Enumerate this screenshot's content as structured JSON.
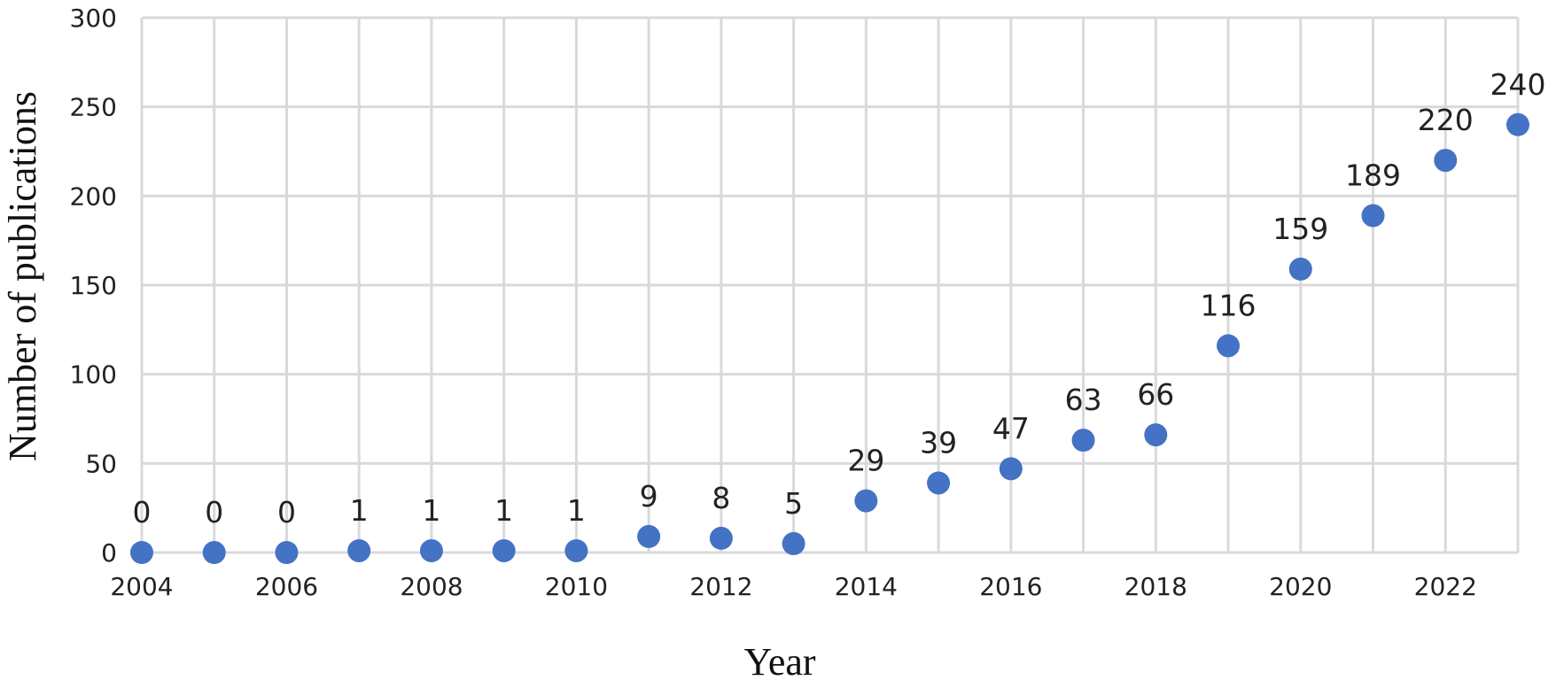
{
  "chart_data": {
    "type": "scatter",
    "title": "",
    "xlabel": "Year",
    "ylabel": "Number of publications",
    "xlim": [
      2004,
      2023
    ],
    "ylim": [
      0,
      300
    ],
    "x_ticks": [
      "2004",
      "2006",
      "2008",
      "2010",
      "2012",
      "2014",
      "2016",
      "2018",
      "2020",
      "2022"
    ],
    "y_ticks": [
      "0",
      "50",
      "100",
      "150",
      "200",
      "250",
      "300"
    ],
    "grid": true,
    "legend": "none",
    "series": [
      {
        "color": "#4472c4",
        "x": [
          2004,
          2005,
          2006,
          2007,
          2008,
          2009,
          2010,
          2011,
          2012,
          2013,
          2014,
          2015,
          2016,
          2017,
          2018,
          2019,
          2020,
          2021,
          2022,
          2023
        ],
        "values": [
          0,
          0,
          0,
          1,
          1,
          1,
          1,
          9,
          8,
          5,
          29,
          39,
          47,
          63,
          66,
          116,
          159,
          189,
          220,
          240
        ],
        "labels": [
          "0",
          "0",
          "0",
          "1",
          "1",
          "1",
          "1",
          "9",
          "8",
          "5",
          "29",
          "39",
          "47",
          "63",
          "66",
          "116",
          "159",
          "189",
          "220",
          "240"
        ]
      }
    ]
  }
}
